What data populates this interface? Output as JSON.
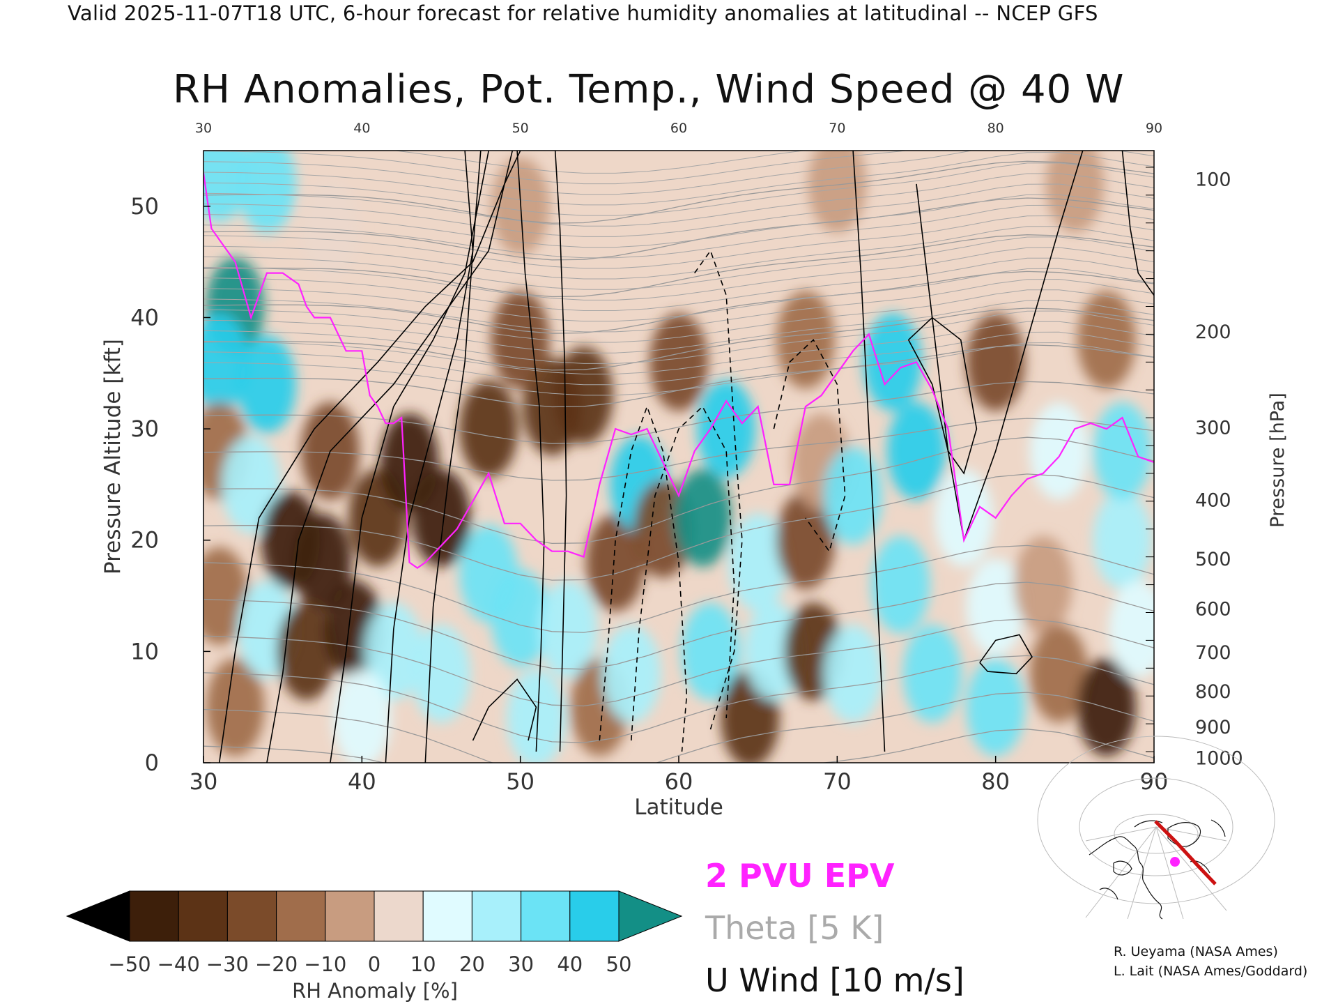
{
  "header": {
    "valid_line": "Valid 2025-11-07T18 UTC, 6-hour forecast for relative humidity anomalies at latitudinal -- NCEP GFS"
  },
  "chart_data": {
    "type": "heatmap",
    "title": "RH Anomalies, Pot. Temp., Wind Speed @ 40 W",
    "xlabel": "Latitude",
    "ylabel_left": "Pressure Altitude [kft]",
    "ylabel_right": "Pressure [hPa]",
    "xlim": [
      30,
      90
    ],
    "ylim": [
      0,
      55
    ],
    "x_ticks": [
      30,
      40,
      50,
      60,
      70,
      80,
      90
    ],
    "y_ticks_left": [
      0,
      10,
      20,
      30,
      40,
      50
    ],
    "pressure_ticks": [
      {
        "p": 100,
        "alt": 52.4
      },
      {
        "p": 200,
        "alt": 38.7
      },
      {
        "p": 300,
        "alt": 30.1
      },
      {
        "p": 400,
        "alt": 23.6
      },
      {
        "p": 500,
        "alt": 18.3
      },
      {
        "p": 600,
        "alt": 13.8
      },
      {
        "p": 700,
        "alt": 9.9
      },
      {
        "p": 800,
        "alt": 6.4
      },
      {
        "p": 900,
        "alt": 3.2
      },
      {
        "p": 1000,
        "alt": 0.4
      }
    ],
    "rh_field": [
      {
        "lat": 32,
        "alt": 41,
        "rh": 50
      },
      {
        "lat": 31,
        "alt": 36,
        "rh": 45
      },
      {
        "lat": 34,
        "alt": 34,
        "rh": 40
      },
      {
        "lat": 31,
        "alt": 28,
        "rh": -15
      },
      {
        "lat": 31,
        "alt": 15,
        "rh": -20
      },
      {
        "lat": 32,
        "alt": 5,
        "rh": -15
      },
      {
        "lat": 33,
        "alt": 25,
        "rh": 25
      },
      {
        "lat": 34,
        "alt": 12,
        "rh": 20
      },
      {
        "lat": 35.5,
        "alt": 20,
        "rh": -45
      },
      {
        "lat": 37.5,
        "alt": 18,
        "rh": -50
      },
      {
        "lat": 36.5,
        "alt": 10,
        "rh": -35
      },
      {
        "lat": 39.5,
        "alt": 12,
        "rh": -50
      },
      {
        "lat": 38,
        "alt": 28,
        "rh": -30
      },
      {
        "lat": 41,
        "alt": 22,
        "rh": -40
      },
      {
        "lat": 43,
        "alt": 27,
        "rh": -45
      },
      {
        "lat": 45,
        "alt": 22,
        "rh": -45
      },
      {
        "lat": 48,
        "alt": 30,
        "rh": -35
      },
      {
        "lat": 52,
        "alt": 32,
        "rh": -40
      },
      {
        "lat": 54,
        "alt": 33,
        "rh": -35
      },
      {
        "lat": 50,
        "alt": 38,
        "rh": -30
      },
      {
        "lat": 60,
        "alt": 36,
        "rh": -25
      },
      {
        "lat": 68,
        "alt": 38,
        "rh": -20
      },
      {
        "lat": 80,
        "alt": 36,
        "rh": -25
      },
      {
        "lat": 87,
        "alt": 38,
        "rh": -15
      },
      {
        "lat": 50,
        "alt": 50,
        "rh": -8
      },
      {
        "lat": 70,
        "alt": 52,
        "rh": -5
      },
      {
        "lat": 85,
        "alt": 52,
        "rh": -3
      },
      {
        "lat": 38,
        "alt": 48,
        "rh": 5
      },
      {
        "lat": 34,
        "alt": 52,
        "rh": 30
      },
      {
        "lat": 31,
        "alt": 53,
        "rh": 35
      },
      {
        "lat": 42,
        "alt": 10,
        "rh": 20
      },
      {
        "lat": 45,
        "alt": 8,
        "rh": 25
      },
      {
        "lat": 40,
        "alt": 4,
        "rh": 15
      },
      {
        "lat": 48,
        "alt": 17,
        "rh": 35
      },
      {
        "lat": 50,
        "alt": 13,
        "rh": 30
      },
      {
        "lat": 51,
        "alt": 4,
        "rh": 25
      },
      {
        "lat": 53,
        "alt": 12,
        "rh": 25
      },
      {
        "lat": 55,
        "alt": 5,
        "rh": -20
      },
      {
        "lat": 56,
        "alt": 18,
        "rh": -25
      },
      {
        "lat": 57.5,
        "alt": 25,
        "rh": 40
      },
      {
        "lat": 57,
        "alt": 8,
        "rh": 20
      },
      {
        "lat": 59,
        "alt": 21,
        "rh": -30
      },
      {
        "lat": 61.5,
        "alt": 22,
        "rh": 50
      },
      {
        "lat": 62,
        "alt": 10,
        "rh": 35
      },
      {
        "lat": 63,
        "alt": 30,
        "rh": 45
      },
      {
        "lat": 65,
        "alt": 18,
        "rh": 25
      },
      {
        "lat": 64.5,
        "alt": 4,
        "rh": -40
      },
      {
        "lat": 66,
        "alt": 10,
        "rh": 20
      },
      {
        "lat": 68,
        "alt": 20,
        "rh": -25
      },
      {
        "lat": 68.5,
        "alt": 10,
        "rh": -40
      },
      {
        "lat": 69,
        "alt": 27,
        "rh": -10
      },
      {
        "lat": 71,
        "alt": 24,
        "rh": 30
      },
      {
        "lat": 71,
        "alt": 8,
        "rh": 25
      },
      {
        "lat": 73.5,
        "alt": 36,
        "rh": 45
      },
      {
        "lat": 75,
        "alt": 28,
        "rh": 40
      },
      {
        "lat": 74,
        "alt": 16,
        "rh": 30
      },
      {
        "lat": 76,
        "alt": 8,
        "rh": 30
      },
      {
        "lat": 78,
        "alt": 22,
        "rh": 10
      },
      {
        "lat": 80,
        "alt": 14,
        "rh": 15
      },
      {
        "lat": 80,
        "alt": 5,
        "rh": 30
      },
      {
        "lat": 83,
        "alt": 16,
        "rh": -10
      },
      {
        "lat": 84,
        "alt": 8,
        "rh": -15
      },
      {
        "lat": 87,
        "alt": 5,
        "rh": -50
      },
      {
        "lat": 88,
        "alt": 20,
        "rh": 20
      },
      {
        "lat": 88,
        "alt": 28,
        "rh": 30
      },
      {
        "lat": 89,
        "alt": 12,
        "rh": 15
      },
      {
        "lat": 84,
        "alt": 28,
        "rh": 15
      }
    ],
    "rh_colorbar": {
      "label": "RH Anomaly [%]",
      "ticks": [
        -50,
        -40,
        -30,
        -20,
        -10,
        0,
        10,
        20,
        30,
        40,
        50
      ],
      "colors": [
        "#000000",
        "#3d1f0a",
        "#5c3316",
        "#7b4b2a",
        "#a06d4b",
        "#c89c80",
        "#ecd8cc",
        "#e0fbff",
        "#a8f0fb",
        "#6be3f5",
        "#29cdea",
        "#0aa2c2",
        "#138f86"
      ]
    },
    "series": [
      {
        "name": "2 PVU EPV",
        "color": "#ff22ff",
        "lat": [
          30,
          30.5,
          31,
          32,
          33,
          34,
          35,
          36,
          36.5,
          37,
          38,
          39,
          40,
          40.5,
          41,
          41.5,
          42,
          42.5,
          43,
          43.5,
          44,
          45,
          46,
          47,
          48,
          49,
          50,
          51,
          52,
          53,
          54,
          55,
          56,
          57,
          58,
          59,
          60,
          61,
          62,
          63,
          64,
          65,
          66,
          67,
          68,
          69,
          70,
          71,
          72,
          73,
          74,
          75,
          76,
          77,
          78,
          79,
          80,
          81,
          82,
          83,
          84,
          85,
          86,
          87,
          88,
          89,
          90
        ],
        "alt": [
          53,
          48,
          47,
          45,
          40,
          44,
          44,
          43,
          41,
          40,
          40,
          37,
          37,
          33,
          32,
          30.5,
          30.5,
          31,
          18,
          17.5,
          18,
          19.5,
          21,
          23.5,
          26,
          21.5,
          21.5,
          20,
          19,
          19,
          18.5,
          25,
          30,
          29.5,
          30,
          27,
          24,
          28,
          30,
          32.5,
          30.5,
          32,
          25,
          25,
          32,
          33,
          35,
          37,
          38.5,
          34,
          35.5,
          36,
          33.5,
          30,
          20,
          23,
          22,
          24,
          25.5,
          26,
          27.5,
          30,
          30.5,
          30,
          31,
          27.5,
          27
        ]
      },
      {
        "name": "Theta [5 K]",
        "color": "#999999",
        "levels": [
          270,
          280,
          290,
          300,
          310,
          320,
          330,
          340,
          350,
          360,
          370,
          380,
          390,
          400,
          410,
          420
        ]
      },
      {
        "name": "U Wind [10 m/s]",
        "color": "#000000",
        "levels": [
          -10,
          0,
          10,
          20,
          30
        ],
        "dashed_negative": true
      }
    ]
  },
  "legend": {
    "epv_label": "2 PVU EPV",
    "theta_label": "Theta [5 K]",
    "wind_label": "U Wind [10 m/s]"
  },
  "credits": {
    "line1": "R. Ueyama (NASA Ames)",
    "line2": "L. Lait (NASA Ames/Goddard)"
  },
  "colors": {
    "epv": "#ff22ff",
    "theta": "#999999",
    "wind": "#000000",
    "map_track": "#cc1111",
    "map_point": "#ff22ff"
  }
}
